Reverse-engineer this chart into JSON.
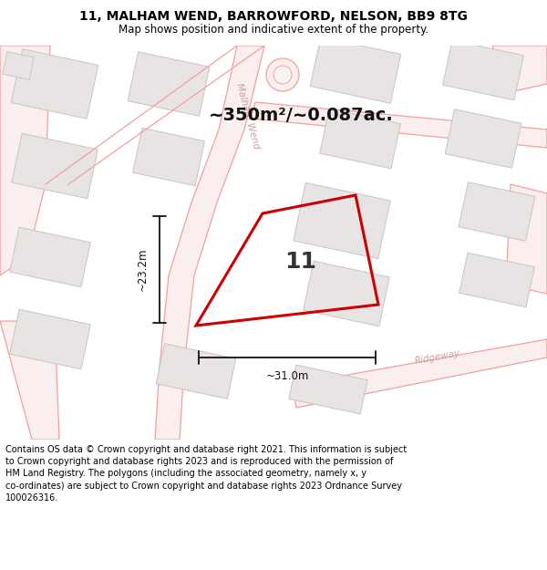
{
  "title": "11, MALHAM WEND, BARROWFORD, NELSON, BB9 8TG",
  "subtitle": "Map shows position and indicative extent of the property.",
  "area_text": "~350m²/~0.087ac.",
  "dim_width": "~31.0m",
  "dim_height": "~23.2m",
  "plot_number": "11",
  "footer": "Contains OS data © Crown copyright and database right 2021. This information is subject to Crown copyright and database rights 2023 and is reproduced with the permission of HM Land Registry. The polygons (including the associated geometry, namely x, y co-ordinates) are subject to Crown copyright and database rights 2023 Ordnance Survey 100026316.",
  "map_bg": "#f7f4f4",
  "road_line_color": "#f0a0a0",
  "building_fill": "#e8e4e4",
  "building_edge": "#c8c4c4",
  "plot_color": "#cc0000",
  "title_color": "#000000",
  "road_label_color": "#c8a0a0",
  "footer_color": "#000000",
  "dim_color": "#222222"
}
